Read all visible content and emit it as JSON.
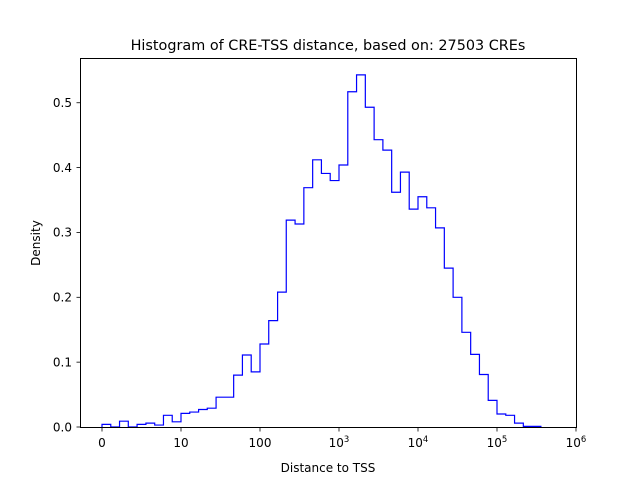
{
  "chart_data": {
    "type": "histogram",
    "title": "Histogram of CRE-TSS distance, based on: 27503 CREs",
    "xlabel": "Distance to TSS",
    "ylabel": "Density",
    "xscale": "symlog",
    "xlim": [
      -2.66,
      1000000
    ],
    "ylim": [
      0,
      0.569
    ],
    "grid": false,
    "line_color": "#0000ff",
    "histtype": "step",
    "x_ticks": [
      {
        "value": 0,
        "base": "0",
        "exp": ""
      },
      {
        "value": 10,
        "base": "10",
        "exp": ""
      },
      {
        "value": 100,
        "base": "100",
        "exp": ""
      },
      {
        "value": 1000,
        "base": "10",
        "exp": "3"
      },
      {
        "value": 10000,
        "base": "10",
        "exp": "4"
      },
      {
        "value": 100000,
        "base": "10",
        "exp": "5"
      },
      {
        "value": 1000000,
        "base": "10",
        "exp": "6"
      }
    ],
    "y_ticks": [
      {
        "value": 0,
        "label": "0.0"
      },
      {
        "value": 0.1,
        "label": "0.1"
      },
      {
        "value": 0.2,
        "label": "0.2"
      },
      {
        "value": 0.3,
        "label": "0.3"
      },
      {
        "value": 0.4,
        "label": "0.4"
      },
      {
        "value": 0.5,
        "label": "0.5"
      }
    ],
    "bin_edges": [
      0,
      1.11,
      2.22,
      3.33,
      4.44,
      5.56,
      6.67,
      7.78,
      8.89,
      10,
      12.9,
      16.7,
      21.5,
      27.8,
      35.9,
      46.4,
      59.9,
      77.4,
      100,
      129,
      167,
      215,
      278,
      359,
      464,
      599,
      774,
      1000,
      1292,
      1668,
      2154,
      2783,
      3594,
      4642,
      5995,
      7743,
      10000,
      12915,
      16681,
      21544,
      27826,
      35938,
      46416,
      59948,
      77426,
      100000,
      129155,
      166810,
      215443,
      278256,
      359381
    ],
    "densities": [
      0.004,
      0,
      0.009,
      0,
      0.004,
      0.006,
      0.003,
      0.018,
      0.008,
      0.021,
      0.023,
      0.027,
      0.029,
      0.046,
      0.046,
      0.08,
      0.111,
      0.085,
      0.128,
      0.164,
      0.208,
      0.319,
      0.313,
      0.369,
      0.412,
      0.391,
      0.38,
      0.404,
      0.517,
      0.543,
      0.493,
      0.443,
      0.427,
      0.362,
      0.393,
      0.336,
      0.355,
      0.338,
      0.307,
      0.245,
      0.2,
      0.146,
      0.112,
      0.081,
      0.041,
      0.02,
      0.018,
      0.006,
      0.001,
      0.001
    ]
  }
}
